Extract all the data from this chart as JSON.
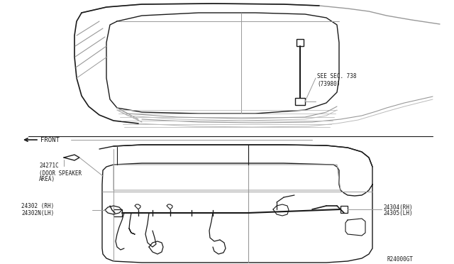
{
  "bg_color": "#ffffff",
  "line_color": "#1a1a1a",
  "gray_color": "#999999",
  "gray2_color": "#bbbbbb",
  "labels": {
    "see_sec_line1": "SEE SEC. 738",
    "see_sec_line2": "(73980)",
    "front": "FRONT",
    "part1": "24271C",
    "part1b": "(DOOR SPEAKER",
    "part1c": "AREA)",
    "part2a": "24302 (RH)",
    "part2b": "24302N(LH)",
    "part3a": "24304(RH)",
    "part3b": "24305(LH)",
    "ref": "R24000GT"
  },
  "font_size": 5.5
}
